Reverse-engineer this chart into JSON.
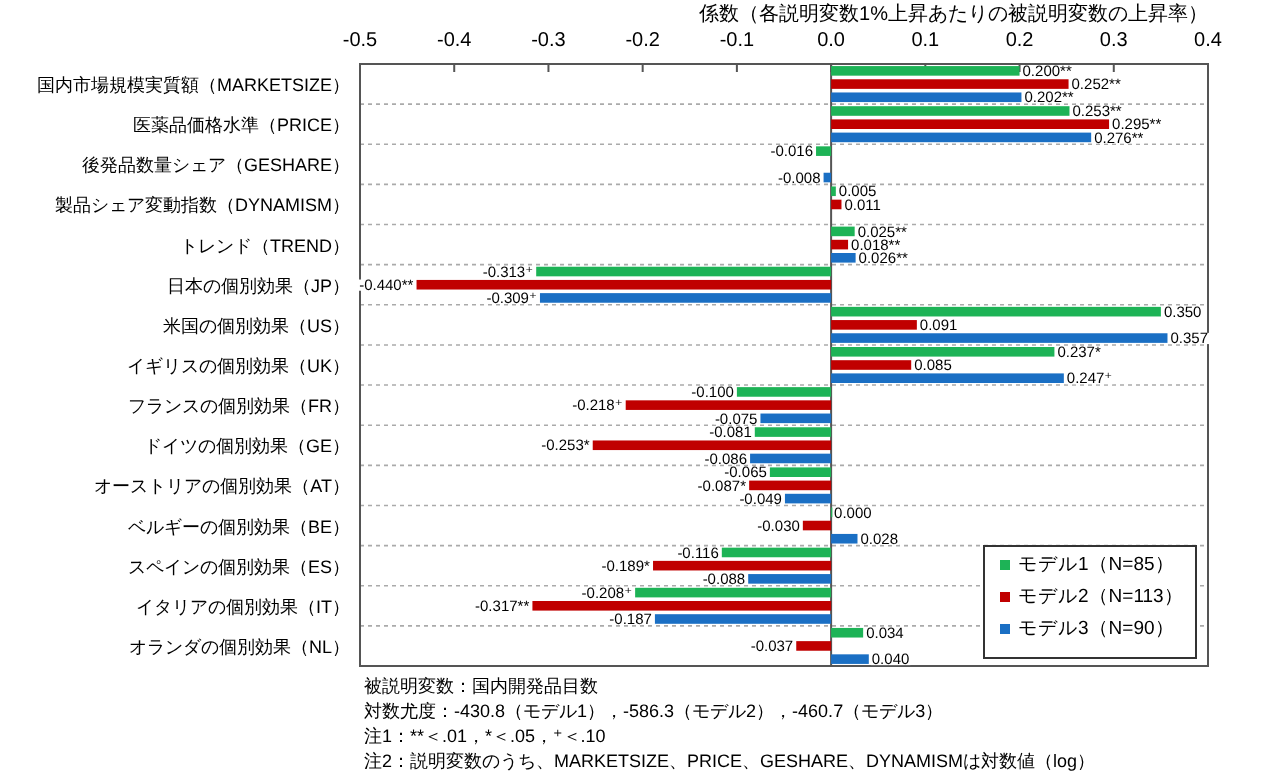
{
  "chart_data": {
    "type": "bar",
    "orientation": "horizontal",
    "xlabel": "係数（各説明変数1%上昇あたりの被説明変数の上昇率）",
    "categories": [
      "国内市場規模実質額（MARKETSIZE）",
      "医薬品価格水準（PRICE）",
      "後発品数量シェア（GESHARE）",
      "製品シェア変動指数（DYNAMISM）",
      "トレンド（TREND）",
      "日本の個別効果（JP）",
      "米国の個別効果（US）",
      "イギリスの個別効果（UK）",
      "フランスの個別効果（FR）",
      "ドイツの個別効果（GE）",
      "オーストリアの個別効果（AT）",
      "ベルギーの個別効果（BE）",
      "スペインの個別効果（ES）",
      "イタリアの個別効果（IT）",
      "オランダの個別効果（NL）"
    ],
    "series": [
      {
        "name": "モデル1（N=85）",
        "color": "#1db356",
        "values": [
          0.2,
          0.253,
          -0.016,
          0.005,
          0.025,
          -0.313,
          0.35,
          0.237,
          -0.1,
          -0.081,
          -0.065,
          0.0,
          -0.116,
          -0.208,
          0.034
        ],
        "value_labels": [
          "0.200**",
          "0.253**",
          "-0.016",
          "0.005",
          "0.025**",
          "-0.313⁺",
          "0.350",
          "0.237*",
          "-0.100",
          "-0.081",
          "-0.065",
          "0.000",
          "-0.116",
          "-0.208⁺",
          "0.034"
        ]
      },
      {
        "name": "モデル2（N=113）",
        "color": "#c00000",
        "values": [
          0.252,
          0.295,
          null,
          0.011,
          0.018,
          -0.44,
          0.091,
          0.085,
          -0.218,
          -0.253,
          -0.087,
          -0.03,
          -0.189,
          -0.317,
          -0.037
        ],
        "value_labels": [
          "0.252**",
          "0.295**",
          null,
          "0.011",
          "0.018**",
          "-0.440**",
          "0.091",
          "0.085",
          "-0.218⁺",
          "-0.253*",
          "-0.087*",
          "-0.030",
          "-0.189*",
          "-0.317**",
          "-0.037"
        ]
      },
      {
        "name": "モデル3（N=90）",
        "color": "#1a6fc4",
        "values": [
          0.202,
          0.276,
          -0.008,
          null,
          0.026,
          -0.309,
          0.357,
          0.247,
          -0.075,
          -0.086,
          -0.049,
          0.028,
          -0.088,
          -0.187,
          0.04
        ],
        "value_labels": [
          "0.202**",
          "0.276**",
          "-0.008",
          null,
          "0.026**",
          "-0.309⁺",
          "0.357",
          "0.247⁺",
          "-0.075",
          "-0.086",
          "-0.049",
          "0.028",
          "-0.088",
          "-0.187",
          "0.040"
        ]
      }
    ],
    "xlim": [
      -0.5,
      0.4
    ],
    "xticks": [
      -0.5,
      -0.4,
      -0.3,
      -0.2,
      -0.1,
      {
        "value": 0,
        "label": "0.0"
      },
      0.1,
      0.2,
      0.3,
      0.4
    ],
    "grid": "y",
    "legend": "bottom right",
    "annotations": [
      "被説明変数：国内開発品目数",
      "対数尤度：-430.8（モデル1），-586.3（モデル2），-460.7（モデル3）",
      "注1：**＜.01，*＜.05，⁺＜.10",
      "注2：説明変数のうち、MARKETSIZE、PRICE、GESHARE、DYNAMISMは対数値（log）"
    ]
  }
}
